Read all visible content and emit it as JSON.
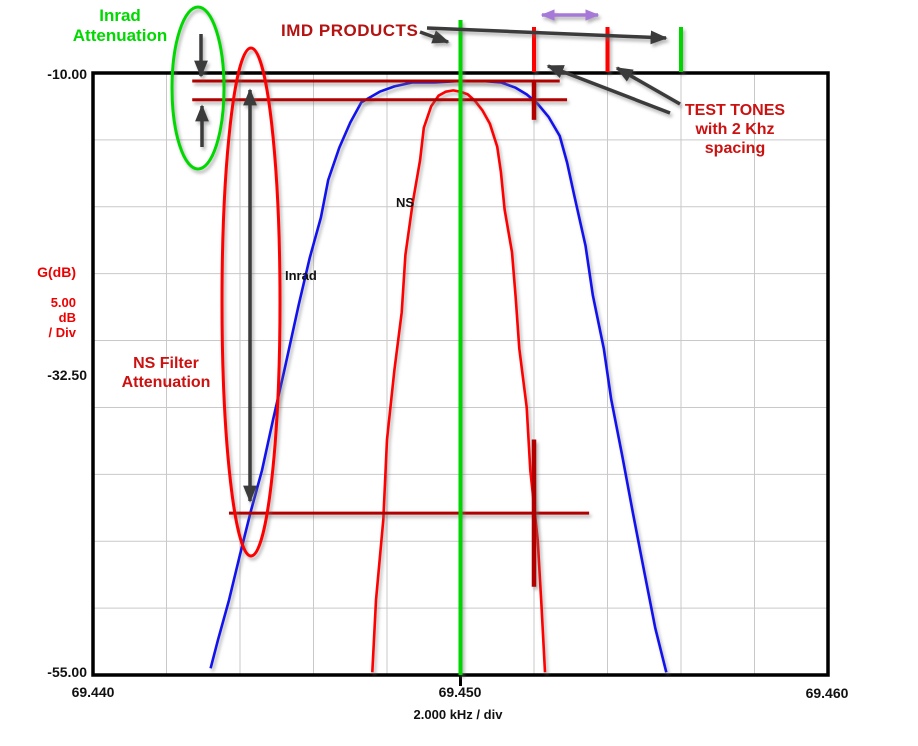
{
  "colors": {
    "inrad_curve": "#1212ee",
    "ns_curve": "#ff0000",
    "annotation_dark_red": "#b00000",
    "marker_green": "#00d500",
    "bright_green_text": "#00d900",
    "imd_text_red": "#b51212",
    "test_tones_text_red": "#cc1111",
    "purple_arrow": "#a678d8",
    "arrow_gray": "#3b3b3b",
    "grid": "#c9c9c9",
    "axis_black": "#000000"
  },
  "labels": {
    "inrad_attenuation": {
      "line1": "Inrad",
      "line2": "Attenuation"
    },
    "imd_products": "IMD PRODUCTS",
    "test_tones": {
      "line1": "TEST TONES",
      "line2": "with 2 Khz",
      "line3": "spacing"
    },
    "ns_filter_attenuation": {
      "line1": "NS Filter",
      "line2": "Attenuation"
    },
    "curve_ns": "NS",
    "curve_inrad": "Inrad"
  },
  "axis": {
    "y_unit_label": "G(dB)",
    "y_scale": {
      "value": "5.00",
      "unit": "dB",
      "per": "/ Div"
    },
    "y_ticks": [
      "-10.00",
      "-32.50",
      "-55.00"
    ],
    "x_ticks": [
      "69.440",
      "69.450",
      "69.460"
    ],
    "x_scale_label": "2.000 kHz / div"
  },
  "chart_data": {
    "type": "line",
    "title": "",
    "xlabel": "2.000 kHz / div",
    "ylabel": "G(dB), 5.00 dB / Div",
    "xlim": [
      69.44,
      69.46
    ],
    "ylim": [
      -55.0,
      -10.0
    ],
    "x_div": 0.002,
    "y_div": 5,
    "x_tick_values": [
      69.44,
      69.45,
      69.46
    ],
    "y_tick_values": [
      -10.0,
      -32.5,
      -55.0
    ],
    "grid": true,
    "series": [
      {
        "name": "Inrad",
        "color": "#1212ee",
        "points": [
          [
            69.4432,
            -54.5
          ],
          [
            69.4434,
            -52.4
          ],
          [
            69.4437,
            -49.4
          ],
          [
            69.444,
            -46.0
          ],
          [
            69.4443,
            -42.7
          ],
          [
            69.4446,
            -39.7
          ],
          [
            69.4449,
            -35.9
          ],
          [
            69.4452,
            -32.3
          ],
          [
            69.4456,
            -27.3
          ],
          [
            69.4459,
            -23.8
          ],
          [
            69.4462,
            -20.8
          ],
          [
            69.4464,
            -18.0
          ],
          [
            69.4467,
            -15.6
          ],
          [
            69.447,
            -13.7
          ],
          [
            69.4473,
            -12.2
          ],
          [
            69.4478,
            -11.4
          ],
          [
            69.4482,
            -11.0
          ],
          [
            69.4487,
            -10.7
          ],
          [
            69.4493,
            -10.7
          ],
          [
            69.45,
            -10.6
          ],
          [
            69.4506,
            -10.6
          ],
          [
            69.4511,
            -10.7
          ],
          [
            69.4515,
            -11.1
          ],
          [
            69.4518,
            -11.6
          ],
          [
            69.4521,
            -12.3
          ],
          [
            69.4524,
            -13.3
          ],
          [
            69.4527,
            -14.7
          ],
          [
            69.4529,
            -16.7
          ],
          [
            69.4531,
            -19.2
          ],
          [
            69.4534,
            -22.9
          ],
          [
            69.4536,
            -26.6
          ],
          [
            69.4539,
            -30.6
          ],
          [
            69.4541,
            -34.4
          ],
          [
            69.4544,
            -38.6
          ],
          [
            69.4547,
            -43.0
          ],
          [
            69.455,
            -47.3
          ],
          [
            69.4553,
            -51.5
          ],
          [
            69.4556,
            -54.8
          ]
        ]
      },
      {
        "name": "NS",
        "color": "#ff0000",
        "points": [
          [
            69.4476,
            -54.8
          ],
          [
            69.4477,
            -49.4
          ],
          [
            69.4479,
            -43.4
          ],
          [
            69.448,
            -37.4
          ],
          [
            69.4482,
            -32.2
          ],
          [
            69.4484,
            -27.9
          ],
          [
            69.4485,
            -23.6
          ],
          [
            69.4487,
            -19.7
          ],
          [
            69.4489,
            -16.5
          ],
          [
            69.449,
            -14.1
          ],
          [
            69.4492,
            -12.5
          ],
          [
            69.4494,
            -11.7
          ],
          [
            69.4496,
            -11.4
          ],
          [
            69.4498,
            -11.3
          ],
          [
            69.45,
            -11.4
          ],
          [
            69.4502,
            -11.6
          ],
          [
            69.4504,
            -12.1
          ],
          [
            69.4506,
            -12.8
          ],
          [
            69.4508,
            -13.8
          ],
          [
            69.451,
            -15.5
          ],
          [
            69.4511,
            -17.4
          ],
          [
            69.4512,
            -20.2
          ],
          [
            69.4514,
            -23.4
          ],
          [
            69.4515,
            -26.7
          ],
          [
            69.4516,
            -30.6
          ],
          [
            69.4518,
            -35.0
          ],
          [
            69.4519,
            -39.7
          ],
          [
            69.4521,
            -44.9
          ],
          [
            69.4522,
            -49.7
          ],
          [
            69.4523,
            -54.8
          ]
        ]
      }
    ],
    "overlays": {
      "center_line": {
        "x_mhz": 69.45,
        "color": "#00d500"
      },
      "top_ticks": [
        {
          "x_mhz": 69.452,
          "color": "#ff0000",
          "name": "test-tone-1-tick"
        },
        {
          "x_mhz": 69.454,
          "color": "#ff0000",
          "name": "test-tone-2-tick"
        },
        {
          "x_mhz": 69.456,
          "color": "#00d500",
          "name": "imd-product-tick"
        }
      ],
      "reference_lines": [
        {
          "name": "inrad-peak-level",
          "level_db": -10.6,
          "x_from_mhz": 69.4427,
          "x_to_mhz": 69.4527
        },
        {
          "name": "test-tone-level",
          "level_db": -12.0,
          "x_from_mhz": 69.4427,
          "x_to_mhz": 69.4529
        },
        {
          "name": "imd-product-level",
          "level_db": -42.9,
          "x_from_mhz": 69.4437,
          "x_to_mhz": 69.4535
        }
      ],
      "crosses": [
        {
          "name": "test-tone-cross",
          "x_mhz": 69.452,
          "level_db": -12.0,
          "half_db": 1.5
        },
        {
          "name": "imd-product-cross",
          "x_mhz": 69.452,
          "level_db": -42.9,
          "half_db": 5.5
        }
      ]
    }
  }
}
